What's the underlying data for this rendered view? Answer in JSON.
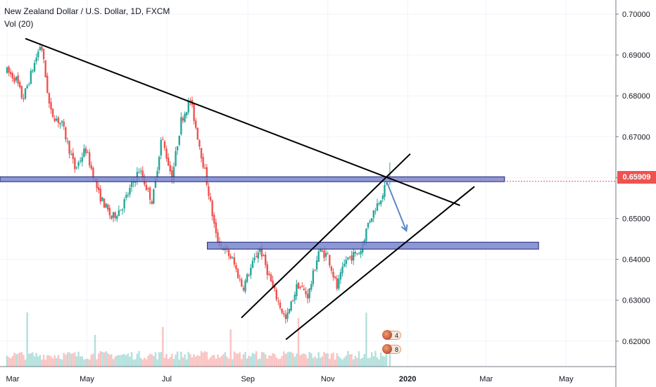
{
  "legend": {
    "title": "New Zealand Dollar / U.S. Dollar, 1D, FXCM",
    "volume": "Vol (20)"
  },
  "last_price_label": "0.65909",
  "events": [
    {
      "name": "event-badge-top",
      "count": "4"
    },
    {
      "name": "event-badge-bottom",
      "count": "8"
    }
  ],
  "colors": {
    "up": "#26a69a",
    "down": "#ef5350",
    "zone_fill": "#7986cb",
    "zone_stroke": "#1a237e",
    "trendline": "#000000",
    "arrow": "#5b8ac6"
  },
  "chart_data": {
    "type": "candlestick",
    "title": "New Zealand Dollar / U.S. Dollar, 1D, FXCM",
    "x_ticks": [
      "Mar",
      "May",
      "Jul",
      "Sep",
      "Nov",
      "2020",
      "Mar",
      "May"
    ],
    "y_ticks": [
      "0.70000",
      "0.69000",
      "0.68000",
      "0.67000",
      "0.66000",
      "0.65000",
      "0.64000",
      "0.63000",
      "0.62000"
    ],
    "ylim": [
      0.6148,
      0.7025
    ],
    "last_price": 0.65909,
    "volume_indicator": "Vol (20)",
    "price_path_anchors": [
      [
        "2019-03-01",
        0.686
      ],
      [
        "2019-03-08",
        0.684
      ],
      [
        "2019-03-13",
        0.679
      ],
      [
        "2019-03-27",
        0.693
      ],
      [
        "2019-04-03",
        0.676
      ],
      [
        "2019-04-12",
        0.673
      ],
      [
        "2019-04-22",
        0.662
      ],
      [
        "2019-04-30",
        0.667
      ],
      [
        "2019-05-10",
        0.656
      ],
      [
        "2019-05-20",
        0.65
      ],
      [
        "2019-05-28",
        0.653
      ],
      [
        "2019-06-10",
        0.662
      ],
      [
        "2019-06-20",
        0.654
      ],
      [
        "2019-06-27",
        0.67
      ],
      [
        "2019-07-05",
        0.66
      ],
      [
        "2019-07-12",
        0.674
      ],
      [
        "2019-07-19",
        0.679
      ],
      [
        "2019-07-31",
        0.66
      ],
      [
        "2019-08-08",
        0.645
      ],
      [
        "2019-08-20",
        0.64
      ],
      [
        "2019-08-28",
        0.633
      ],
      [
        "2019-09-10",
        0.643
      ],
      [
        "2019-09-20",
        0.633
      ],
      [
        "2019-09-30",
        0.625
      ],
      [
        "2019-10-09",
        0.634
      ],
      [
        "2019-10-17",
        0.631
      ],
      [
        "2019-10-25",
        0.642
      ],
      [
        "2019-11-01",
        0.641
      ],
      [
        "2019-11-08",
        0.633
      ],
      [
        "2019-11-15",
        0.64
      ],
      [
        "2019-11-26",
        0.642
      ],
      [
        "2019-12-02",
        0.649
      ],
      [
        "2019-12-11",
        0.655
      ],
      [
        "2019-12-17",
        0.659
      ]
    ],
    "support_resistance_zones": [
      {
        "name": "upper-zone",
        "from": "2018-12-20",
        "to": "2020-03-15",
        "price_top": 0.6602,
        "price_bottom": 0.659
      },
      {
        "name": "lower-zone",
        "from": "2019-08-01",
        "to": "2020-04-10",
        "price_top": 0.6442,
        "price_bottom": 0.6425
      }
    ],
    "trendlines": [
      {
        "name": "descending-trendline",
        "start": [
          "2019-03-15",
          0.694
        ],
        "end": [
          "2020-02-10",
          0.6532
        ]
      },
      {
        "name": "channel-upper-line",
        "start": [
          "2019-08-27",
          0.6257
        ],
        "end": [
          "2020-01-03",
          0.6658
        ]
      },
      {
        "name": "channel-lower-line",
        "start": [
          "2019-09-30",
          0.6204
        ],
        "end": [
          "2020-02-21",
          0.6578
        ]
      }
    ],
    "projection_arrow": {
      "from": [
        "2019-12-16",
        0.659
      ],
      "to": [
        "2019-12-31",
        0.647
      ]
    }
  }
}
